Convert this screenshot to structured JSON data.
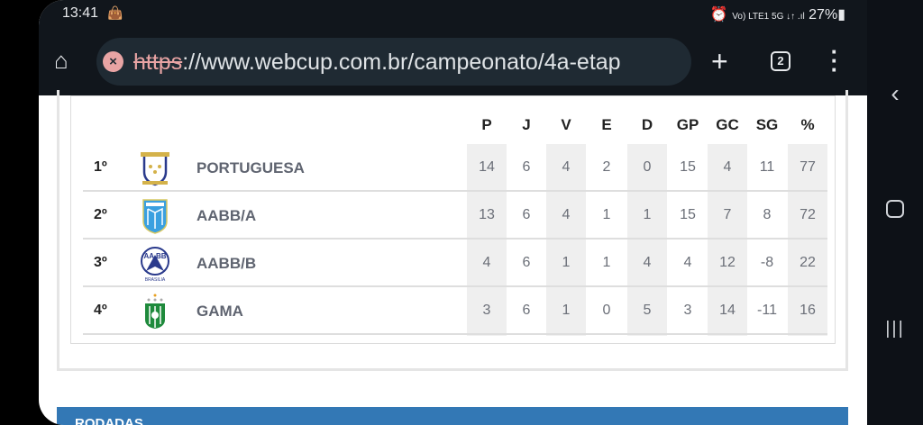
{
  "status_bar": {
    "time": "13:41",
    "battery": "27%",
    "indicators": "Vo) LTE1 5G ↓↑ .ıl"
  },
  "browser": {
    "url_scheme": "https",
    "url_rest": "://www.webcup.com.br/campeonato/4a-etap",
    "tab_count": "2"
  },
  "standings": {
    "columns": [
      "P",
      "J",
      "V",
      "E",
      "D",
      "GP",
      "GC",
      "SG",
      "%"
    ],
    "rows": [
      {
        "pos": "1º",
        "team": "PORTUGUESA",
        "values": [
          "14",
          "6",
          "4",
          "2",
          "0",
          "15",
          "4",
          "11",
          "77"
        ]
      },
      {
        "pos": "2º",
        "team": "AABB/A",
        "values": [
          "13",
          "6",
          "4",
          "1",
          "1",
          "15",
          "7",
          "8",
          "72"
        ]
      },
      {
        "pos": "3º",
        "team": "AABB/B",
        "values": [
          "4",
          "6",
          "1",
          "1",
          "4",
          "4",
          "12",
          "-8",
          "22"
        ]
      },
      {
        "pos": "4º",
        "team": "GAMA",
        "values": [
          "3",
          "6",
          "1",
          "0",
          "5",
          "3",
          "14",
          "-11",
          "16"
        ]
      }
    ]
  },
  "section": {
    "title": "RODADAS"
  },
  "colors": {
    "accent": "#3378b5",
    "toolbar": "#11161c"
  }
}
